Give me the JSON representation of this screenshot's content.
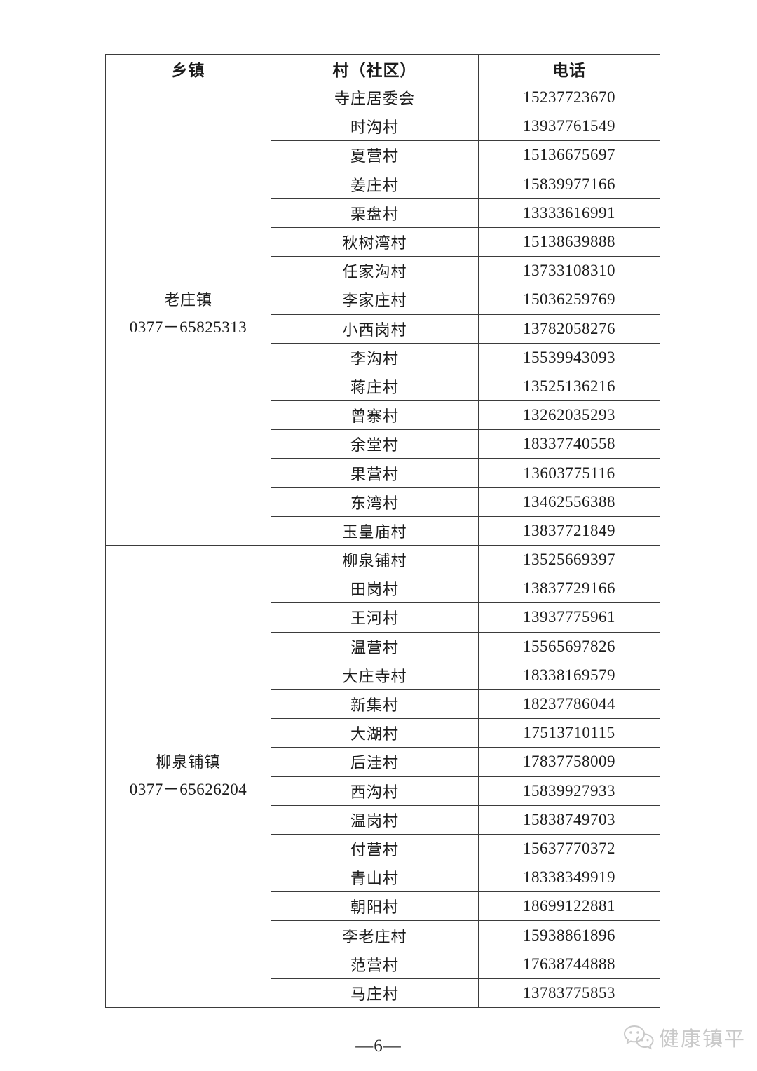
{
  "table": {
    "headers": [
      "乡镇",
      "村（社区）",
      "电话"
    ],
    "groups": [
      {
        "township": "老庄镇",
        "township_phone": "0377－65825313",
        "rows": [
          {
            "village": "寺庄居委会",
            "phone": "15237723670"
          },
          {
            "village": "时沟村",
            "phone": "13937761549"
          },
          {
            "village": "夏营村",
            "phone": "15136675697"
          },
          {
            "village": "姜庄村",
            "phone": "15839977166"
          },
          {
            "village": "栗盘村",
            "phone": "13333616991"
          },
          {
            "village": "秋树湾村",
            "phone": "15138639888"
          },
          {
            "village": "任家沟村",
            "phone": "13733108310"
          },
          {
            "village": "李家庄村",
            "phone": "15036259769"
          },
          {
            "village": "小西岗村",
            "phone": "13782058276"
          },
          {
            "village": "李沟村",
            "phone": "15539943093"
          },
          {
            "village": "蒋庄村",
            "phone": "13525136216"
          },
          {
            "village": "曾寨村",
            "phone": "13262035293"
          },
          {
            "village": "余堂村",
            "phone": "18337740558"
          },
          {
            "village": "果营村",
            "phone": "13603775116"
          },
          {
            "village": "东湾村",
            "phone": "13462556388"
          },
          {
            "village": "玉皇庙村",
            "phone": "13837721849"
          }
        ]
      },
      {
        "township": "柳泉铺镇",
        "township_phone": "0377－65626204",
        "rows": [
          {
            "village": "柳泉铺村",
            "phone": "13525669397"
          },
          {
            "village": "田岗村",
            "phone": "13837729166"
          },
          {
            "village": "王河村",
            "phone": "13937775961"
          },
          {
            "village": "温营村",
            "phone": "15565697826"
          },
          {
            "village": "大庄寺村",
            "phone": "18338169579"
          },
          {
            "village": "新集村",
            "phone": "18237786044"
          },
          {
            "village": "大湖村",
            "phone": "17513710115"
          },
          {
            "village": "后洼村",
            "phone": "17837758009"
          },
          {
            "village": "西沟村",
            "phone": "15839927933"
          },
          {
            "village": "温岗村",
            "phone": "15838749703"
          },
          {
            "village": "付营村",
            "phone": "15637770372"
          },
          {
            "village": "青山村",
            "phone": "18338349919"
          },
          {
            "village": "朝阳村",
            "phone": "18699122881"
          },
          {
            "village": "李老庄村",
            "phone": "15938861896"
          },
          {
            "village": "范营村",
            "phone": "17638744888"
          },
          {
            "village": "马庄村",
            "phone": "13783775853"
          }
        ]
      }
    ]
  },
  "footer": {
    "page_number": "—6—",
    "watermark_text": "健康镇平",
    "watermark_color": "#c9c9c9"
  }
}
